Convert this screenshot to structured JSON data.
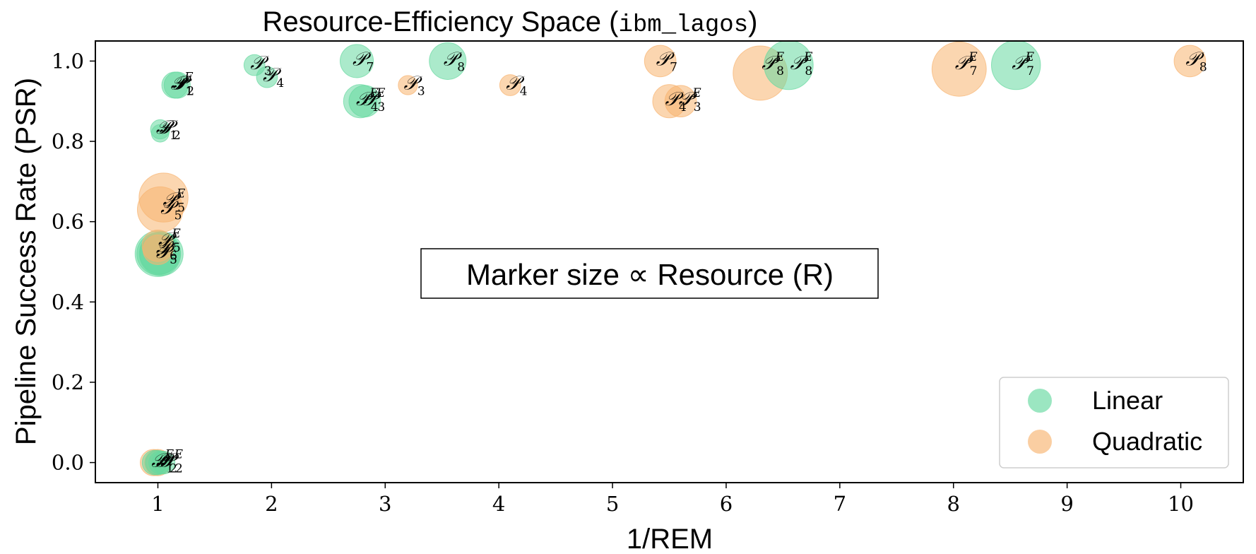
{
  "title": {
    "main": "Resource-Efficiency Space (",
    "device": "ibm_lagos",
    "close": ")"
  },
  "annotation": "Marker size ∝ Resource (R)",
  "legend": {
    "position": "lower-right",
    "items": [
      {
        "label": "Linear",
        "color": "#66d9a0"
      },
      {
        "label": "Quadratic",
        "color": "#f8b470"
      }
    ]
  },
  "chart_data": {
    "type": "scatter",
    "title": "Resource-Efficiency Space (ibm_lagos)",
    "xlabel": "1/REM",
    "ylabel": "Pipeline Success Rate (PSR)",
    "xlim": [
      0.45,
      10.55
    ],
    "ylim": [
      -0.05,
      1.05
    ],
    "xticks": [
      1,
      2,
      3,
      4,
      5,
      6,
      7,
      8,
      9,
      10
    ],
    "yticks": [
      0.0,
      0.2,
      0.4,
      0.6,
      0.8,
      1.0
    ],
    "ytick_labels": [
      "0.0",
      "0.2",
      "0.4",
      "0.6",
      "0.8",
      "1.0"
    ],
    "grid": false,
    "marker_size_encodes": "Resource (R)",
    "series": [
      {
        "name": "Linear",
        "color": "#66d9a0",
        "points": [
          {
            "label": "P",
            "sub": "1",
            "sup": "",
            "x": 1.02,
            "y": 0.83,
            "size": 22
          },
          {
            "label": "P",
            "sub": "2",
            "sup": "",
            "x": 1.02,
            "y": 0.82,
            "size": 20
          },
          {
            "label": "P",
            "sub": "1",
            "sup": "E",
            "x": 1.15,
            "y": 0.94,
            "size": 30
          },
          {
            "label": "P",
            "sub": "2",
            "sup": "E",
            "x": 1.17,
            "y": 0.94,
            "size": 30
          },
          {
            "label": "P",
            "sub": "3",
            "sup": "",
            "x": 1.85,
            "y": 0.99,
            "size": 24
          },
          {
            "label": "P",
            "sub": "4",
            "sup": "",
            "x": 1.96,
            "y": 0.96,
            "size": 24
          },
          {
            "label": "P",
            "sub": "3",
            "sup": "E",
            "x": 2.78,
            "y": 0.9,
            "size": 38
          },
          {
            "label": "P",
            "sub": "4",
            "sup": "E",
            "x": 2.82,
            "y": 0.9,
            "size": 36
          },
          {
            "label": "P",
            "sub": "7",
            "sup": "",
            "x": 2.75,
            "y": 1.0,
            "size": 38
          },
          {
            "label": "P",
            "sub": "8",
            "sup": "",
            "x": 3.55,
            "y": 1.0,
            "size": 42
          },
          {
            "label": "P",
            "sub": "5",
            "sup": "",
            "x": 1.0,
            "y": 0.52,
            "size": 48
          },
          {
            "label": "P",
            "sub": "6",
            "sup": "",
            "x": 1.02,
            "y": 0.52,
            "size": 46
          },
          {
            "label": "P",
            "sub": "5",
            "sup": "E",
            "x": 1.0,
            "y": 0.52,
            "size": 52
          },
          {
            "label": "P",
            "sub": "6",
            "sup": "E",
            "x": 1.03,
            "y": 0.52,
            "size": 50
          },
          {
            "label": "P",
            "sub": "1",
            "sup": "",
            "x": 0.97,
            "y": 0.0,
            "size": 28
          },
          {
            "label": "P",
            "sub": "2",
            "sup": "",
            "x": 1.0,
            "y": 0.0,
            "size": 28
          },
          {
            "label": "P",
            "sub": "1",
            "sup": "E",
            "x": 1.02,
            "y": 0.0,
            "size": 26
          },
          {
            "label": "P",
            "sub": "2",
            "sup": "E",
            "x": 1.05,
            "y": 0.0,
            "size": 26
          },
          {
            "label": "P",
            "sub": "8",
            "sup": "E",
            "x": 6.55,
            "y": 0.99,
            "size": 56
          },
          {
            "label": "P",
            "sub": "7",
            "sup": "E",
            "x": 8.55,
            "y": 0.99,
            "size": 56
          }
        ]
      },
      {
        "name": "Quadratic",
        "color": "#f8b470",
        "points": [
          {
            "label": "P",
            "sub": "5",
            "sup": "E",
            "x": 1.05,
            "y": 0.66,
            "size": 56
          },
          {
            "label": "P",
            "sub": "6",
            "sup": "E",
            "x": 1.02,
            "y": 0.63,
            "size": 52
          },
          {
            "label": "P",
            "sub": "5",
            "sup": "",
            "x": 1.0,
            "y": 0.54,
            "size": 36
          },
          {
            "label": "P",
            "sub": "6",
            "sup": "",
            "x": 1.0,
            "y": 0.53,
            "size": 34
          },
          {
            "label": "P",
            "sub": "1",
            "sup": "",
            "x": 0.96,
            "y": 0.0,
            "size": 30
          },
          {
            "label": "P",
            "sub": "2",
            "sup": "E",
            "x": 1.0,
            "y": 0.0,
            "size": 30
          },
          {
            "label": "P",
            "sub": "3",
            "sup": "",
            "x": 3.2,
            "y": 0.94,
            "size": 22
          },
          {
            "label": "P",
            "sub": "4",
            "sup": "",
            "x": 4.1,
            "y": 0.94,
            "size": 24
          },
          {
            "label": "P",
            "sub": "7",
            "sup": "",
            "x": 5.42,
            "y": 1.0,
            "size": 36
          },
          {
            "label": "P",
            "sub": "4",
            "sup": "E",
            "x": 5.5,
            "y": 0.9,
            "size": 38
          },
          {
            "label": "P",
            "sub": "3",
            "sup": "E",
            "x": 5.6,
            "y": 0.9,
            "size": 36
          },
          {
            "label": "P",
            "sub": "8",
            "sup": "E",
            "x": 6.3,
            "y": 0.97,
            "size": 62
          },
          {
            "label": "P",
            "sub": "7",
            "sup": "E",
            "x": 8.05,
            "y": 0.98,
            "size": 62
          },
          {
            "label": "P",
            "sub": "8",
            "sup": "",
            "x": 10.08,
            "y": 1.0,
            "size": 36
          }
        ]
      }
    ],
    "point_labels": [
      {
        "sub": "1",
        "sup": "E",
        "x": 1.15,
        "y": 0.94
      },
      {
        "sub": "2",
        "sup": "",
        "x": 1.17,
        "y": 0.94
      },
      {
        "sub": "1",
        "sup": "",
        "x": 1.02,
        "y": 0.83
      },
      {
        "sub": "2",
        "sup": "",
        "x": 1.05,
        "y": 0.83
      },
      {
        "sub": "3",
        "sup": "",
        "x": 1.85,
        "y": 0.99
      },
      {
        "sub": "4",
        "sup": "",
        "x": 1.96,
        "y": 0.96
      },
      {
        "sub": "7",
        "sup": "",
        "x": 2.75,
        "y": 1.0
      },
      {
        "sub": "8",
        "sup": "",
        "x": 3.55,
        "y": 1.0
      },
      {
        "sub": "3",
        "sup": "",
        "x": 3.2,
        "y": 0.94
      },
      {
        "sub": "4",
        "sup": "",
        "x": 4.1,
        "y": 0.94
      },
      {
        "sub": "4",
        "sup": "E",
        "x": 2.78,
        "y": 0.9
      },
      {
        "sub": "3",
        "sup": "E",
        "x": 2.84,
        "y": 0.9
      },
      {
        "sub": "7",
        "sup": "",
        "x": 5.42,
        "y": 1.0
      },
      {
        "sub": "4",
        "sup": "",
        "x": 5.5,
        "y": 0.9
      },
      {
        "sub": "3",
        "sup": "E",
        "x": 5.62,
        "y": 0.9
      },
      {
        "sub": "8",
        "sup": "E",
        "x": 6.35,
        "y": 0.99
      },
      {
        "sub": "8",
        "sup": "E",
        "x": 6.6,
        "y": 0.99
      },
      {
        "sub": "7",
        "sup": "E",
        "x": 8.05,
        "y": 0.99
      },
      {
        "sub": "7",
        "sup": "E",
        "x": 8.55,
        "y": 0.99
      },
      {
        "sub": "8",
        "sup": "",
        "x": 10.08,
        "y": 1.0
      },
      {
        "sub": "5",
        "sup": "E",
        "x": 1.08,
        "y": 0.65
      },
      {
        "sub": "5",
        "sup": "",
        "x": 1.06,
        "y": 0.63
      },
      {
        "sub": "5",
        "sup": "E",
        "x": 1.04,
        "y": 0.55
      },
      {
        "sub": "6",
        "sup": "",
        "x": 1.02,
        "y": 0.53
      },
      {
        "sub": "5",
        "sup": "",
        "x": 1.02,
        "y": 0.52
      },
      {
        "sub": "1",
        "sup": "E",
        "x": 0.98,
        "y": 0.0
      },
      {
        "sub": "2",
        "sup": "",
        "x": 1.02,
        "y": 0.0
      },
      {
        "sub": "2",
        "sup": "E",
        "x": 1.06,
        "y": 0.0
      }
    ]
  }
}
